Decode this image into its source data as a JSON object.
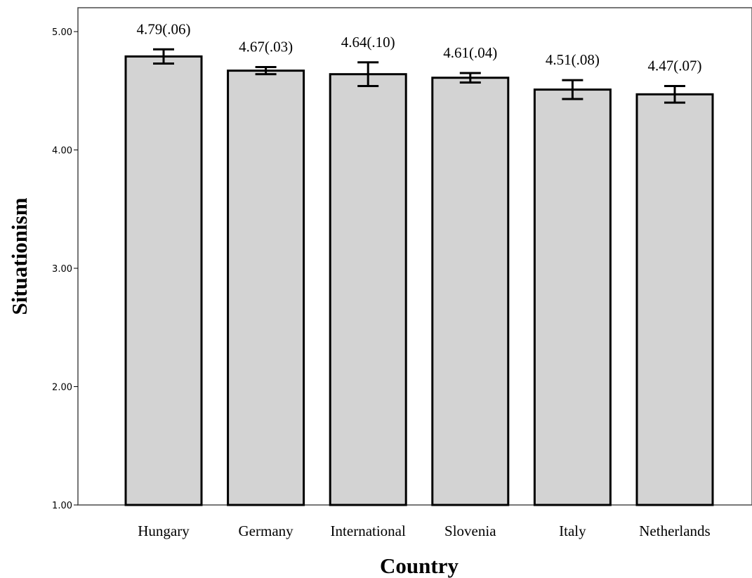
{
  "chart_data": {
    "type": "bar",
    "xlabel": "Country",
    "ylabel": "Situationism",
    "ylim": [
      1,
      5
    ],
    "yticks": [
      "1.00",
      "2.00",
      "3.00",
      "4.00",
      "5.00"
    ],
    "grid": false,
    "categories": [
      "Hungary",
      "Germany",
      "International",
      "Slovenia",
      "Italy",
      "Netherlands"
    ],
    "values": [
      4.79,
      4.67,
      4.64,
      4.61,
      4.51,
      4.47
    ],
    "errors": [
      0.06,
      0.03,
      0.1,
      0.04,
      0.08,
      0.07
    ],
    "data_labels": [
      "4.79(.06)",
      "4.67(.03)",
      "4.64(.10)",
      "4.61(.04)",
      "4.51(.08)",
      "4.47(.07)"
    ],
    "bar_color": "#d3d3d3",
    "edge_color": "#000000"
  }
}
